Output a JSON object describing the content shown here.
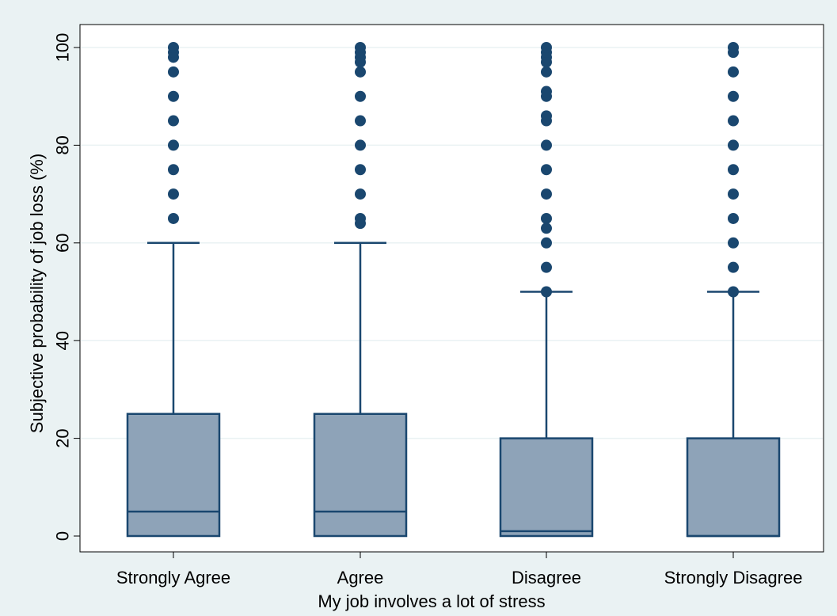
{
  "chart_data": {
    "type": "box",
    "xlabel": "My job involves a lot of stress",
    "ylabel": "Subjective probability of job loss (%)",
    "ylim": [
      0,
      100
    ],
    "yticks": [
      0,
      20,
      40,
      60,
      80,
      100
    ],
    "categories": [
      "Strongly Agree",
      "Agree",
      "Disagree",
      "Strongly Disagree"
    ],
    "boxes": [
      {
        "category": "Strongly Agree",
        "min": 0,
        "q1": 0,
        "median": 5,
        "q3": 25,
        "whisker_high": 60,
        "outliers": [
          65,
          70,
          75,
          80,
          85,
          90,
          95,
          98,
          99,
          100
        ]
      },
      {
        "category": "Agree",
        "min": 0,
        "q1": 0,
        "median": 5,
        "q3": 25,
        "whisker_high": 60,
        "outliers": [
          64,
          65,
          70,
          75,
          80,
          85,
          90,
          95,
          97,
          98,
          99,
          100
        ]
      },
      {
        "category": "Disagree",
        "min": 0,
        "q1": 0,
        "median": 1,
        "q3": 20,
        "whisker_high": 50,
        "outliers": [
          50,
          55,
          60,
          63,
          65,
          70,
          75,
          80,
          85,
          86,
          90,
          91,
          95,
          97,
          98,
          99,
          100
        ]
      },
      {
        "category": "Strongly Disagree",
        "min": 0,
        "q1": 0,
        "median": 0,
        "q3": 20,
        "whisker_high": 50,
        "outliers": [
          50,
          55,
          60,
          65,
          70,
          75,
          80,
          85,
          90,
          95,
          99,
          100
        ]
      }
    ],
    "grid": true,
    "legend": "none",
    "colors": {
      "background": "#eaf2f3",
      "plot_background": "#ffffff",
      "grid": "#eaf2f3",
      "box_fill": "#8ea3b8",
      "line": "#1a476f",
      "marker": "#1a476f"
    }
  }
}
